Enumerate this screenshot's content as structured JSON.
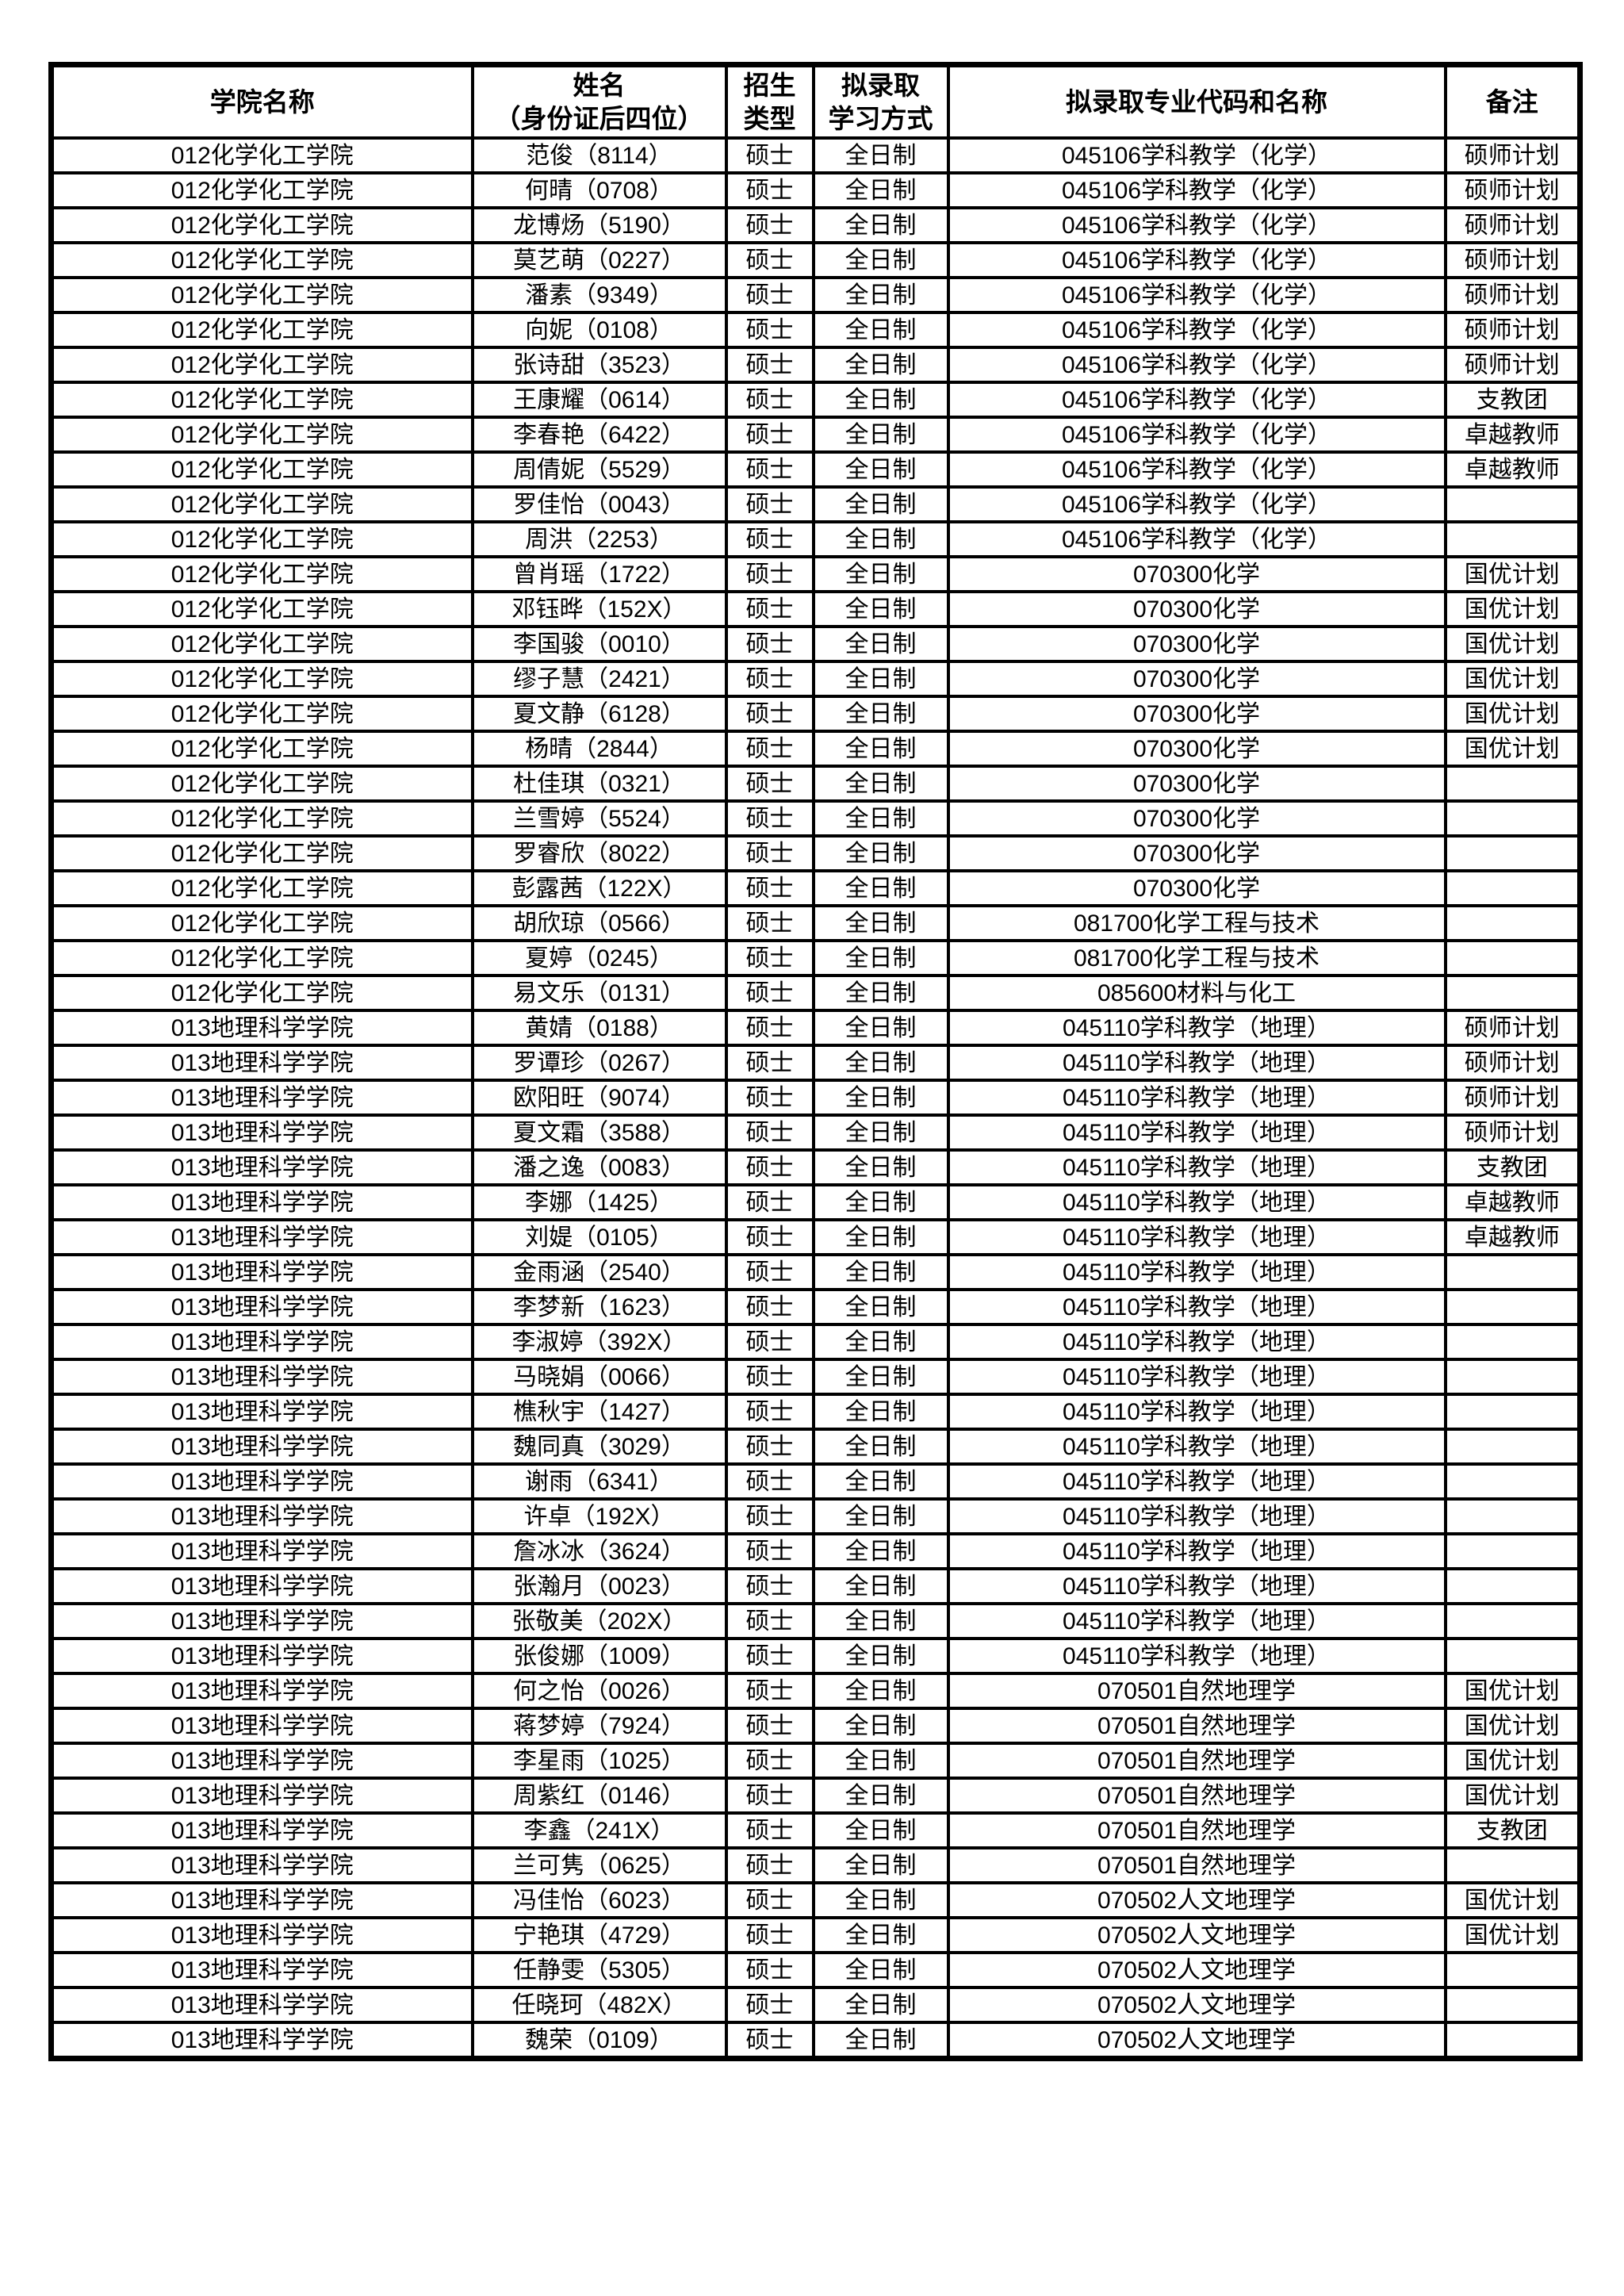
{
  "colors": {
    "text": "#000000",
    "border": "#000000",
    "background": "#ffffff"
  },
  "table": {
    "columns": [
      "学院名称",
      "姓名\n（身份证后四位）",
      "招生\n类型",
      "拟录取\n学习方式",
      "拟录取专业代码和名称",
      "备注"
    ],
    "rows": [
      {
        "college": "012化学化工学院",
        "name": "范俊（8114）",
        "type": "硕士",
        "mode": "全日制",
        "major": "045106学科教学（化学）",
        "remark": "硕师计划"
      },
      {
        "college": "012化学化工学院",
        "name": "何晴（0708）",
        "type": "硕士",
        "mode": "全日制",
        "major": "045106学科教学（化学）",
        "remark": "硕师计划"
      },
      {
        "college": "012化学化工学院",
        "name": "龙博炀（5190）",
        "type": "硕士",
        "mode": "全日制",
        "major": "045106学科教学（化学）",
        "remark": "硕师计划"
      },
      {
        "college": "012化学化工学院",
        "name": "莫艺萌（0227）",
        "type": "硕士",
        "mode": "全日制",
        "major": "045106学科教学（化学）",
        "remark": "硕师计划"
      },
      {
        "college": "012化学化工学院",
        "name": "潘素（9349）",
        "type": "硕士",
        "mode": "全日制",
        "major": "045106学科教学（化学）",
        "remark": "硕师计划"
      },
      {
        "college": "012化学化工学院",
        "name": "向妮（0108）",
        "type": "硕士",
        "mode": "全日制",
        "major": "045106学科教学（化学）",
        "remark": "硕师计划"
      },
      {
        "college": "012化学化工学院",
        "name": "张诗甜（3523）",
        "type": "硕士",
        "mode": "全日制",
        "major": "045106学科教学（化学）",
        "remark": "硕师计划"
      },
      {
        "college": "012化学化工学院",
        "name": "王康耀（0614）",
        "type": "硕士",
        "mode": "全日制",
        "major": "045106学科教学（化学）",
        "remark": "支教团"
      },
      {
        "college": "012化学化工学院",
        "name": "李春艳（6422）",
        "type": "硕士",
        "mode": "全日制",
        "major": "045106学科教学（化学）",
        "remark": "卓越教师"
      },
      {
        "college": "012化学化工学院",
        "name": "周倩妮（5529）",
        "type": "硕士",
        "mode": "全日制",
        "major": "045106学科教学（化学）",
        "remark": "卓越教师"
      },
      {
        "college": "012化学化工学院",
        "name": "罗佳怡（0043）",
        "type": "硕士",
        "mode": "全日制",
        "major": "045106学科教学（化学）",
        "remark": ""
      },
      {
        "college": "012化学化工学院",
        "name": "周洪（2253）",
        "type": "硕士",
        "mode": "全日制",
        "major": "045106学科教学（化学）",
        "remark": ""
      },
      {
        "college": "012化学化工学院",
        "name": "曾肖瑶（1722）",
        "type": "硕士",
        "mode": "全日制",
        "major": "070300化学",
        "remark": "国优计划"
      },
      {
        "college": "012化学化工学院",
        "name": "邓钰晔（152X）",
        "type": "硕士",
        "mode": "全日制",
        "major": "070300化学",
        "remark": "国优计划"
      },
      {
        "college": "012化学化工学院",
        "name": "李国骏（0010）",
        "type": "硕士",
        "mode": "全日制",
        "major": "070300化学",
        "remark": "国优计划"
      },
      {
        "college": "012化学化工学院",
        "name": "缪子慧（2421）",
        "type": "硕士",
        "mode": "全日制",
        "major": "070300化学",
        "remark": "国优计划"
      },
      {
        "college": "012化学化工学院",
        "name": "夏文静（6128）",
        "type": "硕士",
        "mode": "全日制",
        "major": "070300化学",
        "remark": "国优计划"
      },
      {
        "college": "012化学化工学院",
        "name": "杨晴（2844）",
        "type": "硕士",
        "mode": "全日制",
        "major": "070300化学",
        "remark": "国优计划"
      },
      {
        "college": "012化学化工学院",
        "name": "杜佳琪（0321）",
        "type": "硕士",
        "mode": "全日制",
        "major": "070300化学",
        "remark": ""
      },
      {
        "college": "012化学化工学院",
        "name": "兰雪婷（5524）",
        "type": "硕士",
        "mode": "全日制",
        "major": "070300化学",
        "remark": ""
      },
      {
        "college": "012化学化工学院",
        "name": "罗睿欣（8022）",
        "type": "硕士",
        "mode": "全日制",
        "major": "070300化学",
        "remark": ""
      },
      {
        "college": "012化学化工学院",
        "name": "彭露茜（122X）",
        "type": "硕士",
        "mode": "全日制",
        "major": "070300化学",
        "remark": ""
      },
      {
        "college": "012化学化工学院",
        "name": "胡欣琼（0566）",
        "type": "硕士",
        "mode": "全日制",
        "major": "081700化学工程与技术",
        "remark": ""
      },
      {
        "college": "012化学化工学院",
        "name": "夏婷（0245）",
        "type": "硕士",
        "mode": "全日制",
        "major": "081700化学工程与技术",
        "remark": ""
      },
      {
        "college": "012化学化工学院",
        "name": "易文乐（0131）",
        "type": "硕士",
        "mode": "全日制",
        "major": "085600材料与化工",
        "remark": ""
      },
      {
        "college": "013地理科学学院",
        "name": "黄婧（0188）",
        "type": "硕士",
        "mode": "全日制",
        "major": "045110学科教学（地理）",
        "remark": "硕师计划"
      },
      {
        "college": "013地理科学学院",
        "name": "罗谭珍（0267）",
        "type": "硕士",
        "mode": "全日制",
        "major": "045110学科教学（地理）",
        "remark": "硕师计划"
      },
      {
        "college": "013地理科学学院",
        "name": "欧阳旺（9074）",
        "type": "硕士",
        "mode": "全日制",
        "major": "045110学科教学（地理）",
        "remark": "硕师计划"
      },
      {
        "college": "013地理科学学院",
        "name": "夏文霜（3588）",
        "type": "硕士",
        "mode": "全日制",
        "major": "045110学科教学（地理）",
        "remark": "硕师计划"
      },
      {
        "college": "013地理科学学院",
        "name": "潘之逸（0083）",
        "type": "硕士",
        "mode": "全日制",
        "major": "045110学科教学（地理）",
        "remark": "支教团"
      },
      {
        "college": "013地理科学学院",
        "name": "李娜（1425）",
        "type": "硕士",
        "mode": "全日制",
        "major": "045110学科教学（地理）",
        "remark": "卓越教师"
      },
      {
        "college": "013地理科学学院",
        "name": "刘媞（0105）",
        "type": "硕士",
        "mode": "全日制",
        "major": "045110学科教学（地理）",
        "remark": "卓越教师"
      },
      {
        "college": "013地理科学学院",
        "name": "金雨涵（2540）",
        "type": "硕士",
        "mode": "全日制",
        "major": "045110学科教学（地理）",
        "remark": ""
      },
      {
        "college": "013地理科学学院",
        "name": "李梦新（1623）",
        "type": "硕士",
        "mode": "全日制",
        "major": "045110学科教学（地理）",
        "remark": ""
      },
      {
        "college": "013地理科学学院",
        "name": "李淑婷（392X）",
        "type": "硕士",
        "mode": "全日制",
        "major": "045110学科教学（地理）",
        "remark": ""
      },
      {
        "college": "013地理科学学院",
        "name": "马晓娟（0066）",
        "type": "硕士",
        "mode": "全日制",
        "major": "045110学科教学（地理）",
        "remark": ""
      },
      {
        "college": "013地理科学学院",
        "name": "樵秋宇（1427）",
        "type": "硕士",
        "mode": "全日制",
        "major": "045110学科教学（地理）",
        "remark": ""
      },
      {
        "college": "013地理科学学院",
        "name": "魏同真（3029）",
        "type": "硕士",
        "mode": "全日制",
        "major": "045110学科教学（地理）",
        "remark": ""
      },
      {
        "college": "013地理科学学院",
        "name": "谢雨（6341）",
        "type": "硕士",
        "mode": "全日制",
        "major": "045110学科教学（地理）",
        "remark": ""
      },
      {
        "college": "013地理科学学院",
        "name": "许卓（192X）",
        "type": "硕士",
        "mode": "全日制",
        "major": "045110学科教学（地理）",
        "remark": ""
      },
      {
        "college": "013地理科学学院",
        "name": "詹冰冰（3624）",
        "type": "硕士",
        "mode": "全日制",
        "major": "045110学科教学（地理）",
        "remark": ""
      },
      {
        "college": "013地理科学学院",
        "name": "张瀚月（0023）",
        "type": "硕士",
        "mode": "全日制",
        "major": "045110学科教学（地理）",
        "remark": ""
      },
      {
        "college": "013地理科学学院",
        "name": "张敬美（202X）",
        "type": "硕士",
        "mode": "全日制",
        "major": "045110学科教学（地理）",
        "remark": ""
      },
      {
        "college": "013地理科学学院",
        "name": "张俊娜（1009）",
        "type": "硕士",
        "mode": "全日制",
        "major": "045110学科教学（地理）",
        "remark": ""
      },
      {
        "college": "013地理科学学院",
        "name": "何之怡（0026）",
        "type": "硕士",
        "mode": "全日制",
        "major": "070501自然地理学",
        "remark": "国优计划"
      },
      {
        "college": "013地理科学学院",
        "name": "蒋梦婷（7924）",
        "type": "硕士",
        "mode": "全日制",
        "major": "070501自然地理学",
        "remark": "国优计划"
      },
      {
        "college": "013地理科学学院",
        "name": "李星雨（1025）",
        "type": "硕士",
        "mode": "全日制",
        "major": "070501自然地理学",
        "remark": "国优计划"
      },
      {
        "college": "013地理科学学院",
        "name": "周紫红（0146）",
        "type": "硕士",
        "mode": "全日制",
        "major": "070501自然地理学",
        "remark": "国优计划"
      },
      {
        "college": "013地理科学学院",
        "name": "李鑫（241X）",
        "type": "硕士",
        "mode": "全日制",
        "major": "070501自然地理学",
        "remark": "支教团"
      },
      {
        "college": "013地理科学学院",
        "name": "兰可隽（0625）",
        "type": "硕士",
        "mode": "全日制",
        "major": "070501自然地理学",
        "remark": ""
      },
      {
        "college": "013地理科学学院",
        "name": "冯佳怡（6023）",
        "type": "硕士",
        "mode": "全日制",
        "major": "070502人文地理学",
        "remark": "国优计划"
      },
      {
        "college": "013地理科学学院",
        "name": "宁艳琪（4729）",
        "type": "硕士",
        "mode": "全日制",
        "major": "070502人文地理学",
        "remark": "国优计划"
      },
      {
        "college": "013地理科学学院",
        "name": "任静雯（5305）",
        "type": "硕士",
        "mode": "全日制",
        "major": "070502人文地理学",
        "remark": ""
      },
      {
        "college": "013地理科学学院",
        "name": "任晓珂（482X）",
        "type": "硕士",
        "mode": "全日制",
        "major": "070502人文地理学",
        "remark": ""
      },
      {
        "college": "013地理科学学院",
        "name": "魏荣（0109）",
        "type": "硕士",
        "mode": "全日制",
        "major": "070502人文地理学",
        "remark": ""
      }
    ]
  }
}
